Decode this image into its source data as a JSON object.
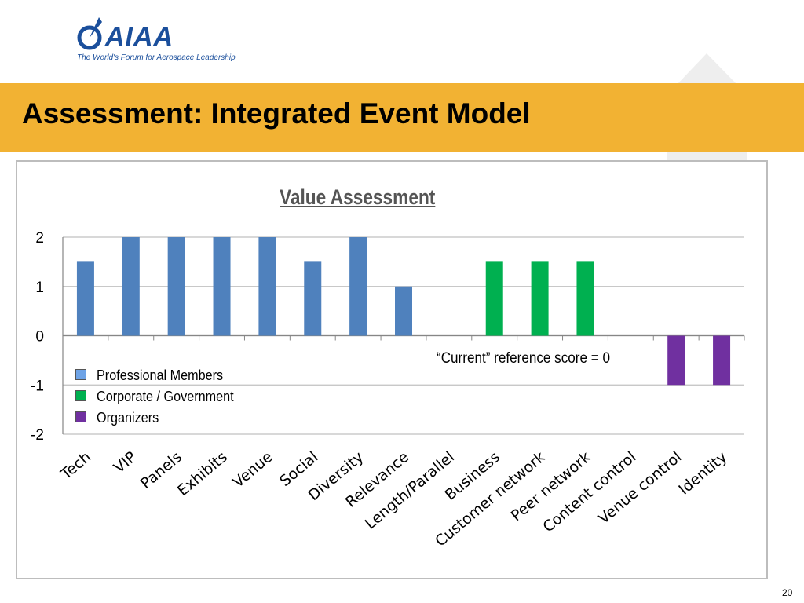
{
  "logo": {
    "text": "AIAA",
    "tagline": "The World's Forum for Aerospace Leadership"
  },
  "slide": {
    "title": "Assessment: Integrated Event Model",
    "page_number": "20"
  },
  "colors": {
    "title_band": "#f2b233",
    "professional": "#4f81bd",
    "corporate": "#00b050",
    "organizers": "#7030a0"
  },
  "chart_data": {
    "type": "bar",
    "title": "Value Assessment",
    "xlabel": "",
    "ylabel": "",
    "ylim": [
      -2,
      2
    ],
    "yticks": [
      "2",
      "1",
      "0",
      "-1",
      "-2"
    ],
    "categories": [
      "Tech",
      "VIP",
      "Panels",
      "Exhibits",
      "Venue",
      "Social",
      "Diversity",
      "Relevance",
      "Length/Parallel",
      "Business",
      "Customer network",
      "Peer network",
      "Content control",
      "Venue control",
      "Identity"
    ],
    "series": [
      {
        "name": "Professional Members",
        "color": "#4f81bd",
        "values": [
          1.5,
          2,
          2,
          2,
          2,
          1.5,
          2,
          1,
          null,
          null,
          null,
          null,
          null,
          null,
          null
        ]
      },
      {
        "name": "Corporate / Government",
        "color": "#00b050",
        "values": [
          null,
          null,
          null,
          null,
          null,
          null,
          null,
          null,
          null,
          1.5,
          1.5,
          1.5,
          null,
          null,
          null
        ]
      },
      {
        "name": "Organizers",
        "color": "#7030a0",
        "values": [
          null,
          null,
          null,
          null,
          null,
          null,
          null,
          null,
          null,
          null,
          null,
          null,
          null,
          -1,
          -1
        ]
      }
    ],
    "grid": true,
    "legend_position": "bottom-left",
    "annotation": "“Current” reference score = 0"
  }
}
